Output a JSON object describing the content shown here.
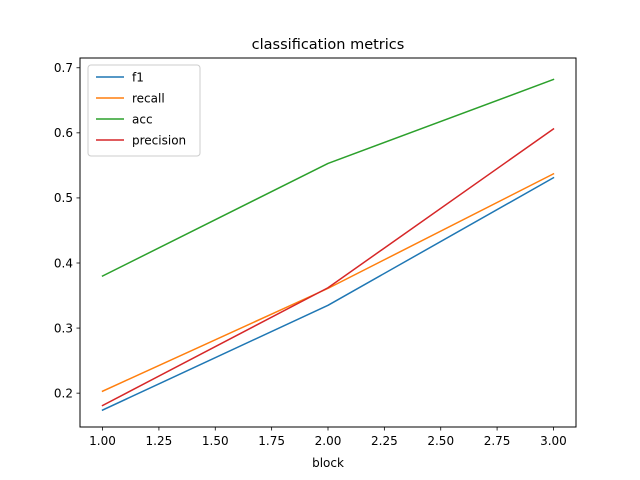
{
  "chart_data": {
    "type": "line",
    "title": "classification metrics",
    "xlabel": "block",
    "ylabel": "",
    "x": [
      1.0,
      2.0,
      3.0
    ],
    "xlim": [
      0.9,
      3.1
    ],
    "ylim": [
      0.148,
      0.715
    ],
    "xticks": [
      "1.00",
      "1.25",
      "1.50",
      "1.75",
      "2.00",
      "2.25",
      "2.50",
      "2.75",
      "3.00"
    ],
    "yticks": [
      "0.2",
      "0.3",
      "0.4",
      "0.5",
      "0.6",
      "0.7"
    ],
    "grid": false,
    "legend_position": "top-left",
    "series": [
      {
        "name": "f1",
        "color": "#1f77b4",
        "values": [
          0.174,
          0.335,
          0.531
        ]
      },
      {
        "name": "recall",
        "color": "#ff7f0e",
        "values": [
          0.203,
          0.361,
          0.537
        ]
      },
      {
        "name": "acc",
        "color": "#2ca02c",
        "values": [
          0.38,
          0.553,
          0.682
        ]
      },
      {
        "name": "precision",
        "color": "#d62728",
        "values": [
          0.181,
          0.362,
          0.606
        ]
      }
    ]
  }
}
